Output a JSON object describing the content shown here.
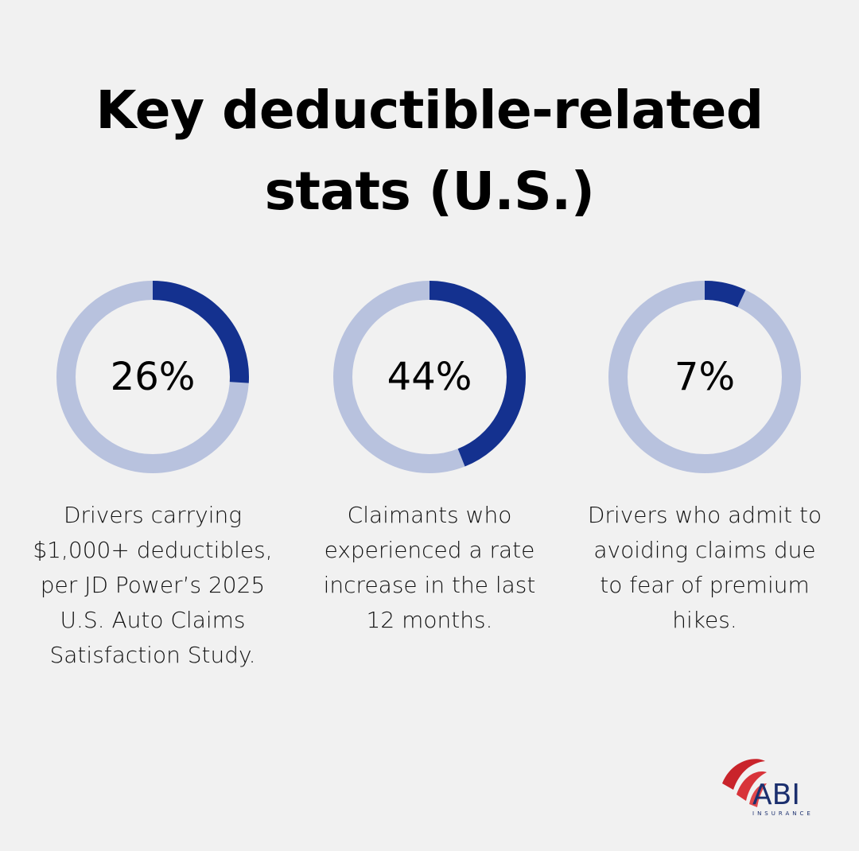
{
  "title": "Key deductible-related stats (U.S.)",
  "chart_data": [
    {
      "type": "donut",
      "values": [
        26
      ],
      "value_labels": [
        "26%"
      ],
      "caption": "Drivers carrying $1,000+ deductibles, per JD Power’s 2025 U.S. Auto Claims Satisfaction Study.",
      "color": "#14318f",
      "track_color": "#b8c2de"
    },
    {
      "type": "donut",
      "values": [
        44
      ],
      "value_labels": [
        "44%"
      ],
      "caption": "Claimants who experienced a rate increase in the last 12 months.",
      "color": "#14318f",
      "track_color": "#b8c2de"
    },
    {
      "type": "donut",
      "values": [
        7
      ],
      "value_labels": [
        "7%"
      ],
      "caption": "Drivers who admit to avoiding claims due to fear of premium hikes.",
      "color": "#14318f",
      "track_color": "#b8c2de"
    }
  ],
  "logo": {
    "name": "ABI",
    "tagline": "INSURANCE"
  }
}
